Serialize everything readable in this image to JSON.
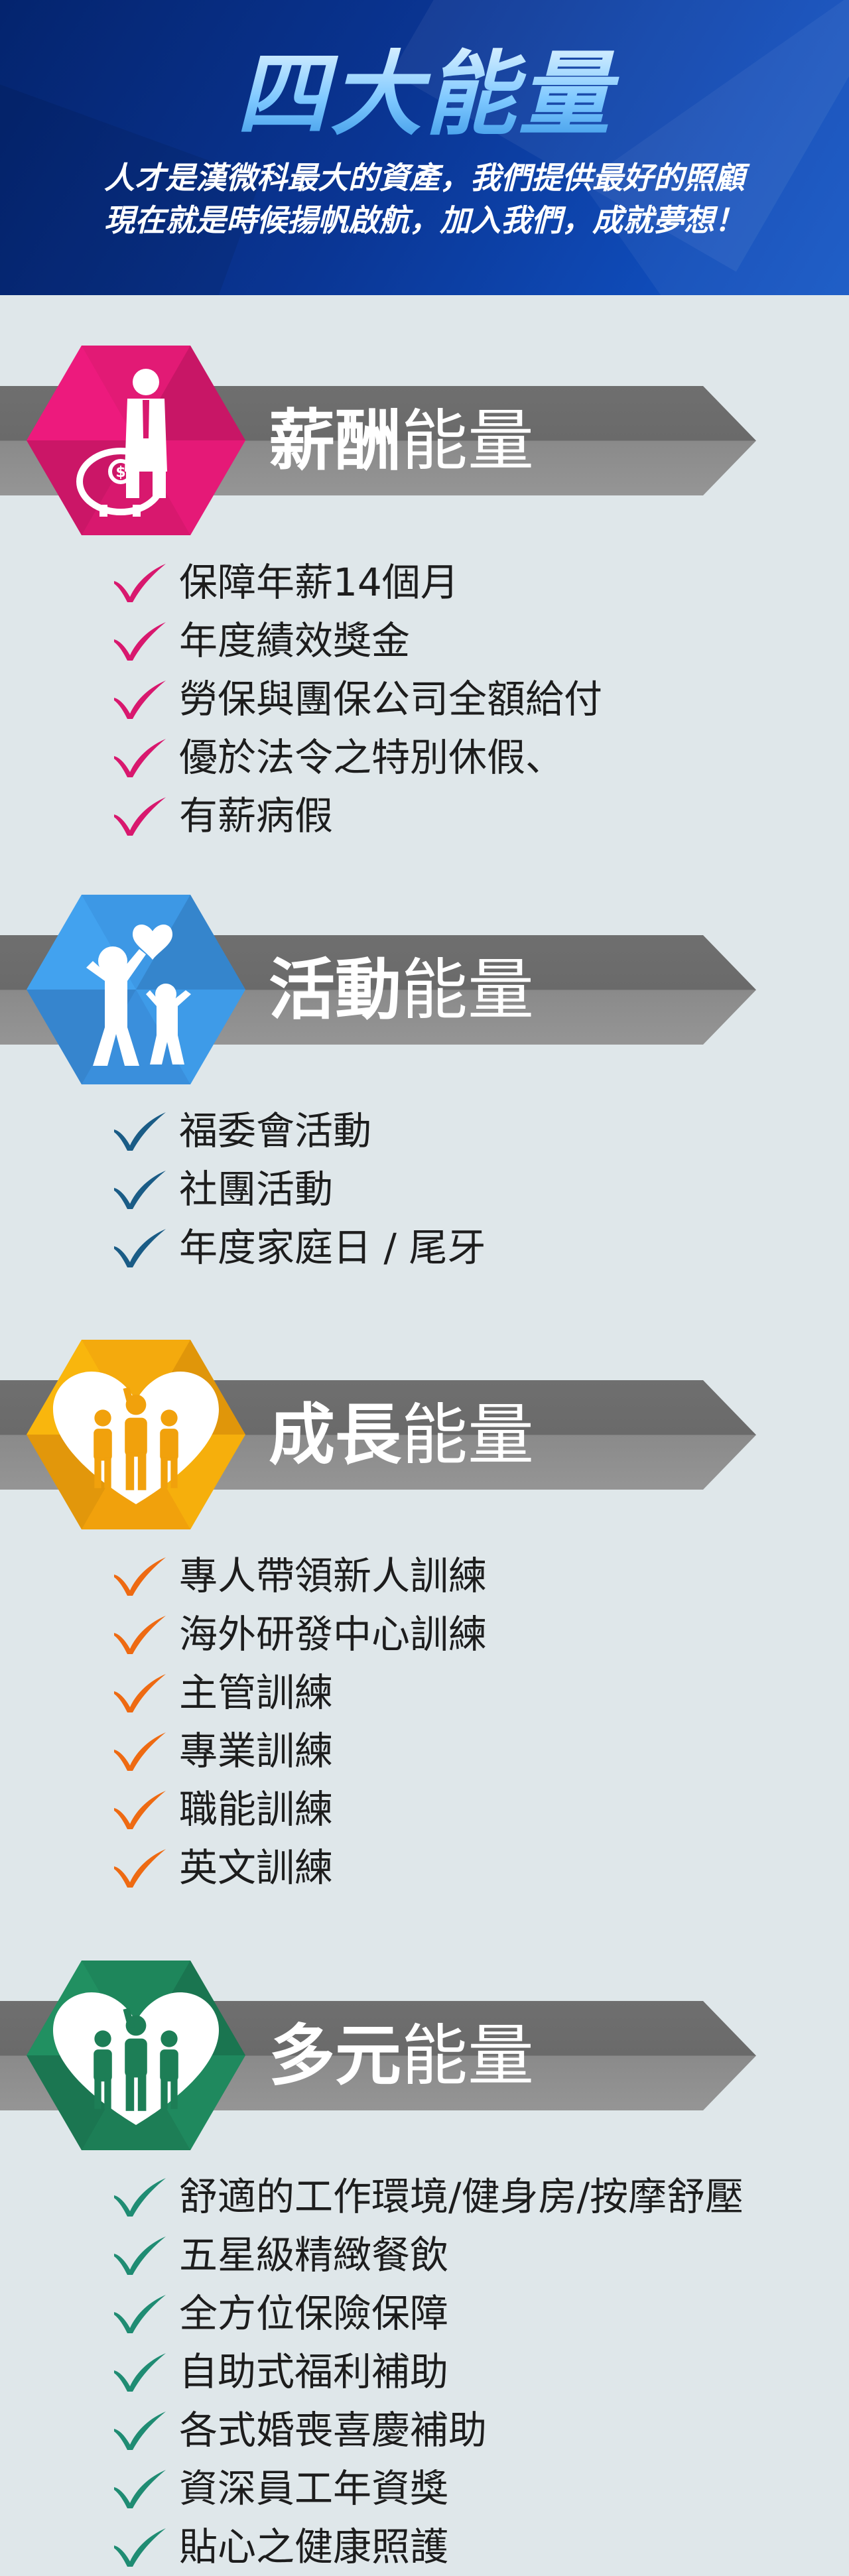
{
  "header": {
    "title": "四大能量",
    "line1": "人才是漢微科最大的資產，我們提供最好的照顧",
    "line2": "現在就是時候揚帆啟航，加入我們，成就夢想！"
  },
  "sections": [
    {
      "title_strong": "薪酬",
      "title_light": "能量",
      "icon": "salary-piggybank-icon",
      "hex_color": "#d8186e",
      "check_color": "#d8186e",
      "items": [
        "保障年薪14個月",
        "年度績效獎金",
        "勞保與團保公司全額給付",
        "優於法令之特別休假、",
        "有薪病假"
      ]
    },
    {
      "title_strong": "活動",
      "title_light": "能量",
      "icon": "family-activity-icon",
      "hex_color": "#3a8fdc",
      "check_color": "#1a5c86",
      "items": [
        "福委會活動",
        "社團活動",
        "年度家庭日 / 尾牙"
      ]
    },
    {
      "title_strong": "成長",
      "title_light": "能量",
      "icon": "team-growth-icon",
      "hex_color": "#f1a10c",
      "check_color": "#ee6a12",
      "items": [
        "專人帶領新人訓練",
        "海外研發中心訓練",
        "主管訓練",
        "專業訓練",
        "職能訓練",
        "英文訓練"
      ]
    },
    {
      "title_strong": "多元",
      "title_light": "能量",
      "icon": "team-diversity-icon",
      "hex_color": "#1d7e56",
      "check_color": "#1f8c73",
      "items": [
        "舒適的工作環境/健身房/按摩舒壓",
        "五星級精緻餐飲",
        "全方位保險保障",
        "自助式福利補助",
        "各式婚喪喜慶補助",
        "資深員工年資獎",
        "貼心之健康照護"
      ]
    }
  ]
}
